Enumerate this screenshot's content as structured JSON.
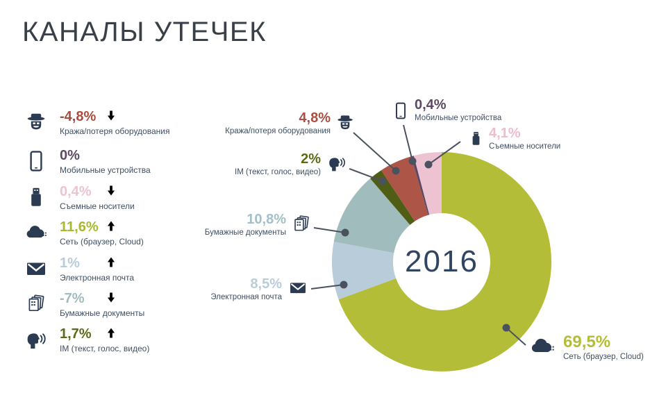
{
  "title": "КАНАЛЫ УТЕЧЕК",
  "colors": {
    "background": "#ffffff",
    "title_text": "#3a4047",
    "label_text": "#3e4e63",
    "icon": "#2b3b52",
    "line": "#4a5260",
    "center_text": "#2f4560",
    "trend_up": "#3c7a3c",
    "trend_down": "#bf392b"
  },
  "sidebar": {
    "items": [
      {
        "value": "-4,8%",
        "trend": "down",
        "label": "Кража/потеря оборудования",
        "color": "#a94c3e",
        "icon": "spy-icon"
      },
      {
        "value": "0%",
        "trend": "none",
        "label": "Мобильные устройства",
        "color": "#5c4964",
        "icon": "tablet-icon"
      },
      {
        "value": "0,4%",
        "trend": "down",
        "label": "Съемные носители",
        "color": "#eec3d1",
        "icon": "usb-icon"
      },
      {
        "value": "11,6%",
        "trend": "up",
        "label": "Сеть (браузер, Cloud)",
        "color": "#aab82f",
        "icon": "cloud-icon"
      },
      {
        "value": "1%",
        "trend": "up",
        "label": "Электронная почта",
        "color": "#b9ccd9",
        "icon": "mail-icon"
      },
      {
        "value": "-7%",
        "trend": "down",
        "label": "Бумажные документы",
        "color": "#a0bcbd",
        "icon": "documents-icon"
      },
      {
        "value": "1,7%",
        "trend": "up",
        "label": "IM (текст, голос, видео)",
        "color": "#5a6a16",
        "icon": "im-icon"
      }
    ]
  },
  "chart_data": {
    "type": "pie",
    "donut": true,
    "units": "%",
    "center_label": "2016",
    "start_angle_deg": 0,
    "direction": "clockwise",
    "slices": [
      {
        "key": "net",
        "label": "Сеть (браузер, Cloud)",
        "value": 69.5,
        "value_label": "69,5%",
        "color": "#b3bd38",
        "label_color": "#b3bd38"
      },
      {
        "key": "email",
        "label": "Электронная почта",
        "value": 8.5,
        "value_label": "8,5%",
        "color": "#b9ccd9",
        "label_color": "#b9cdd9"
      },
      {
        "key": "paper",
        "label": "Бумажные документы",
        "value": 10.8,
        "value_label": "10,8%",
        "color": "#a0bcbd",
        "label_color": "#a3c0c9"
      },
      {
        "key": "im",
        "label": "IM (текст, голос, видео)",
        "value": 2,
        "value_label": "2%",
        "color": "#4f5e14",
        "label_color": "#5a6a16"
      },
      {
        "key": "theft",
        "label": "Кража/потеря оборудования",
        "value": 4.8,
        "value_label": "4,8%",
        "color": "#ad5648",
        "label_color": "#aa4f41"
      },
      {
        "key": "mobile",
        "label": "Мобильные устройства",
        "value": 0.4,
        "value_label": "0,4%",
        "color": "#5c4964",
        "label_color": "#5c4964"
      },
      {
        "key": "removable",
        "label": "Съемные носители",
        "value": 4.1,
        "value_label": "4,1%",
        "color": "#eec3d1",
        "label_color": "#efbcce"
      }
    ]
  }
}
